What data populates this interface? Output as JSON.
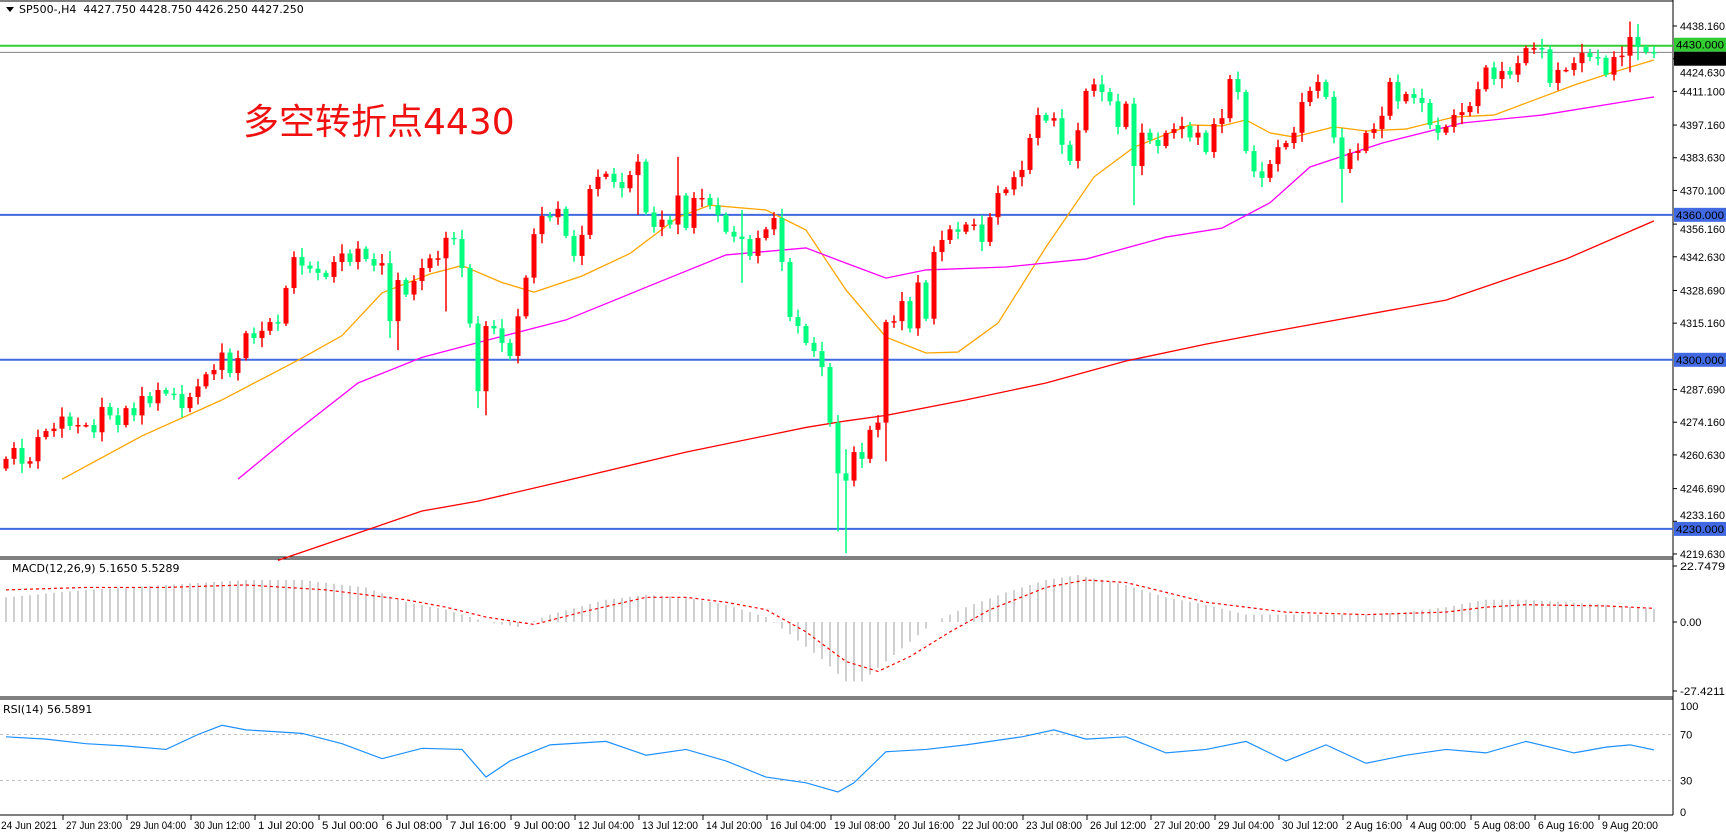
{
  "header": {
    "symbol": "SP500-,H4",
    "ohlc": "4427.750 4428.750 4426.250 4427.250"
  },
  "annotation": "多空转折点4430",
  "colors": {
    "bull": "#ff0000",
    "bear": "#00ff7f",
    "ma_fast": "#ffa500",
    "ma_mid": "#ff00ff",
    "ma_slow": "#ff0000",
    "level_line": "#4169e1",
    "pivot_line": "#32cd32",
    "price_line": "#808080",
    "macd_hist": "#c0c0c0",
    "macd_signal": "#ff0000",
    "rsi": "#1e90ff"
  },
  "chart_data": [
    {
      "type": "candlestick",
      "price_axis": {
        "ylim": [
          4217,
          4442
        ],
        "ticks": [
          "4438.160",
          "4424.630",
          "4411.100",
          "4397.160",
          "4383.630",
          "4370.100",
          "4356.160",
          "4342.630",
          "4328.690",
          "4315.160",
          "4287.690",
          "4274.160",
          "4260.630",
          "4246.690",
          "4233.160",
          "4219.630"
        ]
      },
      "time_axis": {
        "labels": [
          "24 Jun 2021",
          "27 Jun 23:00",
          "29 Jun 04:00",
          "30 Jun 12:00",
          "1 Jul 20:00",
          "5 Jul 00:00",
          "6 Jul 08:00",
          "7 Jul 16:00",
          "9 Jul 00:00",
          "12 Jul 04:00",
          "13 Jul 12:00",
          "14 Jul 20:00",
          "16 Jul 04:00",
          "19 Jul 08:00",
          "20 Jul 16:00",
          "22 Jul 00:00",
          "23 Jul 08:00",
          "26 Jul 12:00",
          "27 Jul 20:00",
          "29 Jul 04:00",
          "30 Jul 12:00",
          "2 Aug 16:00",
          "4 Aug 00:00",
          "5 Aug 08:00",
          "6 Aug 16:00",
          "9 Aug 20:00"
        ]
      },
      "closes": [
        4259,
        4263.5,
        4257,
        4258,
        4268,
        4270.5,
        4271.5,
        4276.5,
        4272.6,
        4273,
        4273,
        4270,
        4280.5,
        4277,
        4273,
        4280,
        4277,
        4285,
        4282,
        4287.5,
        4286,
        4285.8,
        4280,
        4284.6,
        4289,
        4294,
        4295.8,
        4303,
        4294.5,
        4300.7,
        4311,
        4309,
        4312,
        4315.6,
        4315,
        4329.7,
        4342.5,
        4339,
        4337.7,
        4336,
        4334.3,
        4340.5,
        4344,
        4340.5,
        4346,
        4341.7,
        4339,
        4340,
        4316,
        4333,
        4327,
        4332.6,
        4338,
        4342,
        4342,
        4350.5,
        4350,
        4338,
        4315,
        4287,
        4314,
        4313,
        4307,
        4301.6,
        4318,
        4334,
        4352,
        4359.5,
        4359,
        4362.5,
        4351.3,
        4343,
        4351.7,
        4370.7,
        4375.7,
        4377,
        4373.6,
        4371,
        4376.5,
        4382,
        4361,
        4355,
        4358,
        4356,
        4368,
        4354.6,
        4367,
        4367,
        4364,
        4360,
        4353,
        4351,
        4350,
        4343,
        4350.4,
        4354,
        4358.7,
        4340.5,
        4317.7,
        4314,
        4307,
        4303.6,
        4297,
        4274,
        4253,
        4250,
        4261.8,
        4259,
        4271,
        4274,
        4315.6,
        4316,
        4324.3,
        4313,
        4332,
        4317,
        4344.6,
        4349.6,
        4354,
        4353,
        4356,
        4356,
        4348.8,
        4359,
        4369,
        4370.5,
        4375.6,
        4378.6,
        4391.8,
        4401.3,
        4399,
        4400,
        4389,
        4382.3,
        4395,
        4411.3,
        4414,
        4410.8,
        4407,
        4396.4,
        4406,
        4380.2,
        4394,
        4391,
        4388.5,
        4393.9,
        4395.5,
        4396.8,
        4392,
        4394,
        4386,
        4397.6,
        4400,
        4416.2,
        4410.8,
        4386.4,
        4378,
        4375.3,
        4381,
        4388,
        4389.7,
        4394,
        4406.7,
        4411.3,
        4415,
        4408.8,
        4392,
        4379,
        4385.6,
        4386.5,
        4393.9,
        4395.5,
        4401,
        4415,
        4407,
        4410,
        4408.4,
        4406.3,
        4397.2,
        4394,
        4396.4,
        4401.3,
        4402.5,
        4405,
        4412,
        4421,
        4416.2,
        4419.5,
        4418,
        4422.8,
        4429,
        4429,
        4428.5,
        4414.6,
        4420,
        4420,
        4422.8,
        4427,
        4425.3,
        4425,
        4418,
        4425.3,
        4425.9,
        4433.6,
        4429.5,
        4427.4,
        4427.25
      ],
      "first_open": 4255,
      "wick_extremes": [
        [
          48,
          4345,
          4309
        ],
        [
          49,
          4336,
          4304
        ],
        [
          55,
          4353,
          4320
        ],
        [
          59,
          4316,
          4280
        ],
        [
          60,
          4316,
          4277
        ],
        [
          79,
          4384,
          4360
        ],
        [
          84,
          4384,
          4352
        ],
        [
          92,
          4362,
          4331.8
        ],
        [
          104,
          4266,
          4229
        ],
        [
          105,
          4263,
          4220
        ],
        [
          110,
          4316,
          4258
        ],
        [
          141,
          4408,
          4364
        ],
        [
          167,
          4393,
          4365
        ],
        [
          203,
          4440,
          4419
        ],
        [
          204,
          4439,
          4424
        ]
      ],
      "moving_averages": [
        {
          "color_key": "ma_fast",
          "points": [
            [
              7,
              4250.6
            ],
            [
              17,
              4268.5
            ],
            [
              27,
              4283.4
            ],
            [
              37,
              4300.7
            ],
            [
              42,
              4310
            ],
            [
              47,
              4327.7
            ],
            [
              53,
              4335.5
            ],
            [
              57,
              4339
            ],
            [
              62,
              4332
            ],
            [
              66,
              4328
            ],
            [
              72,
              4334.7
            ],
            [
              78,
              4344
            ],
            [
              84,
              4359
            ],
            [
              88,
              4364
            ],
            [
              95,
              4362
            ],
            [
              100,
              4353.7
            ],
            [
              105,
              4328.9
            ],
            [
              110,
              4309.4
            ],
            [
              115,
              4302.8
            ],
            [
              119,
              4303.2
            ],
            [
              124,
              4315.2
            ],
            [
              130,
              4346.7
            ],
            [
              136,
              4375.7
            ],
            [
              141,
              4388
            ],
            [
              148,
              4397.2
            ],
            [
              152,
              4396.8
            ],
            [
              155,
              4399.3
            ],
            [
              158,
              4393.9
            ],
            [
              161,
              4392.2
            ],
            [
              166,
              4396.4
            ],
            [
              170,
              4394.7
            ],
            [
              175,
              4395.5
            ],
            [
              181,
              4400.5
            ],
            [
              186,
              4401.3
            ],
            [
              191,
              4407.5
            ],
            [
              196,
              4413.7
            ],
            [
              201,
              4419.1
            ],
            [
              206,
              4424.1
            ]
          ]
        },
        {
          "color_key": "ma_mid",
          "points": [
            [
              29,
              4250.6
            ],
            [
              36,
              4269.7
            ],
            [
              44,
              4290.4
            ],
            [
              52,
              4301
            ],
            [
              60,
              4308
            ],
            [
              70,
              4316.5
            ],
            [
              80,
              4330
            ],
            [
              90,
              4343.4
            ],
            [
              100,
              4346.3
            ],
            [
              105,
              4340
            ],
            [
              110,
              4333.8
            ],
            [
              115,
              4337.2
            ],
            [
              125,
              4338.4
            ],
            [
              135,
              4341.7
            ],
            [
              145,
              4350.8
            ],
            [
              152,
              4354.5
            ],
            [
              158,
              4365
            ],
            [
              163,
              4379.8
            ],
            [
              172,
              4389.7
            ],
            [
              182,
              4398
            ],
            [
              192,
              4401.3
            ],
            [
              206,
              4408.8
            ]
          ]
        },
        {
          "color_key": "ma_slow",
          "points": [
            [
              34,
              4217
            ],
            [
              44,
              4228.3
            ],
            [
              52,
              4237.4
            ],
            [
              59,
              4241.5
            ],
            [
              70,
              4250
            ],
            [
              85,
              4261.8
            ],
            [
              100,
              4272
            ],
            [
              105,
              4274.7
            ],
            [
              110,
              4277
            ],
            [
              120,
              4283.4
            ],
            [
              130,
              4290.4
            ],
            [
              140,
              4299.5
            ],
            [
              150,
              4306.5
            ],
            [
              158,
              4311.5
            ],
            [
              180,
              4324.7
            ],
            [
              195,
              4341.7
            ],
            [
              206,
              4357.5
            ]
          ]
        }
      ],
      "horizontal_levels": [
        {
          "price": 4430.0,
          "label": "4430.000",
          "color_key": "pivot_line"
        },
        {
          "price": 4360.0,
          "label": "4360.000",
          "color_key": "level_line"
        },
        {
          "price": 4300.0,
          "label": "4300.000",
          "color_key": "level_line"
        },
        {
          "price": 4230.0,
          "label": "4230.000",
          "color_key": "level_line"
        }
      ],
      "current_price": {
        "price": 4427.25,
        "label": "4427.250"
      }
    },
    {
      "type": "macd",
      "label": "MACD(12,26,9) 5.1650 5.5289",
      "axis_ticks": [
        "22.7479",
        "0.00",
        "-27.4211"
      ],
      "ylim": [
        -27.4211,
        22.7479
      ],
      "histogram_points": [
        [
          0,
          10
        ],
        [
          10,
          13
        ],
        [
          20,
          15
        ],
        [
          30,
          17
        ],
        [
          37,
          17
        ],
        [
          45,
          14
        ],
        [
          50,
          8
        ],
        [
          55,
          5
        ],
        [
          60,
          0
        ],
        [
          64,
          -2
        ],
        [
          68,
          3
        ],
        [
          75,
          9
        ],
        [
          80,
          11
        ],
        [
          85,
          10
        ],
        [
          90,
          7
        ],
        [
          95,
          2
        ],
        [
          98,
          -5
        ],
        [
          102,
          -15
        ],
        [
          105,
          -24
        ],
        [
          107,
          -24
        ],
        [
          110,
          -16
        ],
        [
          113,
          -8
        ],
        [
          116,
          0
        ],
        [
          120,
          6
        ],
        [
          125,
          12
        ],
        [
          130,
          17
        ],
        [
          134,
          19
        ],
        [
          140,
          15
        ],
        [
          145,
          10
        ],
        [
          150,
          7
        ],
        [
          155,
          3
        ],
        [
          160,
          3
        ],
        [
          170,
          3
        ],
        [
          175,
          4
        ],
        [
          180,
          6
        ],
        [
          185,
          9
        ],
        [
          190,
          9
        ],
        [
          195,
          8
        ],
        [
          200,
          7
        ],
        [
          206,
          5.165
        ]
      ],
      "signal_points": [
        [
          0,
          13
        ],
        [
          10,
          14
        ],
        [
          20,
          14
        ],
        [
          30,
          15
        ],
        [
          40,
          13
        ],
        [
          50,
          9
        ],
        [
          55,
          6
        ],
        [
          60,
          2
        ],
        [
          66,
          -1
        ],
        [
          72,
          4
        ],
        [
          80,
          10
        ],
        [
          85,
          10
        ],
        [
          90,
          8
        ],
        [
          95,
          5
        ],
        [
          100,
          -4
        ],
        [
          105,
          -16
        ],
        [
          109,
          -20
        ],
        [
          113,
          -14
        ],
        [
          118,
          -4
        ],
        [
          123,
          5
        ],
        [
          130,
          14
        ],
        [
          135,
          17
        ],
        [
          140,
          16
        ],
        [
          145,
          12
        ],
        [
          150,
          8
        ],
        [
          155,
          6
        ],
        [
          160,
          4
        ],
        [
          170,
          3
        ],
        [
          180,
          4
        ],
        [
          185,
          6
        ],
        [
          190,
          7
        ],
        [
          200,
          6.5
        ],
        [
          206,
          5.5289
        ]
      ]
    },
    {
      "type": "line",
      "label": "RSI(14) 56.5891",
      "axis_ticks": [
        "100",
        "70",
        "30",
        "0"
      ],
      "levels": [
        70,
        30
      ],
      "ylim": [
        0,
        100
      ],
      "points": [
        [
          0,
          68
        ],
        [
          5,
          66
        ],
        [
          10,
          62
        ],
        [
          15,
          60
        ],
        [
          20,
          57
        ],
        [
          24,
          70
        ],
        [
          27,
          78
        ],
        [
          30,
          74
        ],
        [
          37,
          71
        ],
        [
          42,
          62
        ],
        [
          47,
          49
        ],
        [
          52,
          58
        ],
        [
          57,
          57
        ],
        [
          60,
          33
        ],
        [
          63,
          47
        ],
        [
          68,
          61
        ],
        [
          75,
          64
        ],
        [
          80,
          52
        ],
        [
          85,
          57
        ],
        [
          90,
          47
        ],
        [
          95,
          33
        ],
        [
          100,
          28
        ],
        [
          104,
          20
        ],
        [
          106,
          28
        ],
        [
          110,
          55
        ],
        [
          115,
          57
        ],
        [
          120,
          61
        ],
        [
          127,
          68
        ],
        [
          131,
          74
        ],
        [
          135,
          66
        ],
        [
          140,
          68
        ],
        [
          145,
          54
        ],
        [
          150,
          57
        ],
        [
          155,
          64
        ],
        [
          160,
          47
        ],
        [
          165,
          61
        ],
        [
          170,
          45
        ],
        [
          175,
          52
        ],
        [
          180,
          57
        ],
        [
          185,
          54
        ],
        [
          190,
          64
        ],
        [
          196,
          54
        ],
        [
          200,
          59
        ],
        [
          203,
          61
        ],
        [
          206,
          56.5891
        ]
      ]
    }
  ]
}
